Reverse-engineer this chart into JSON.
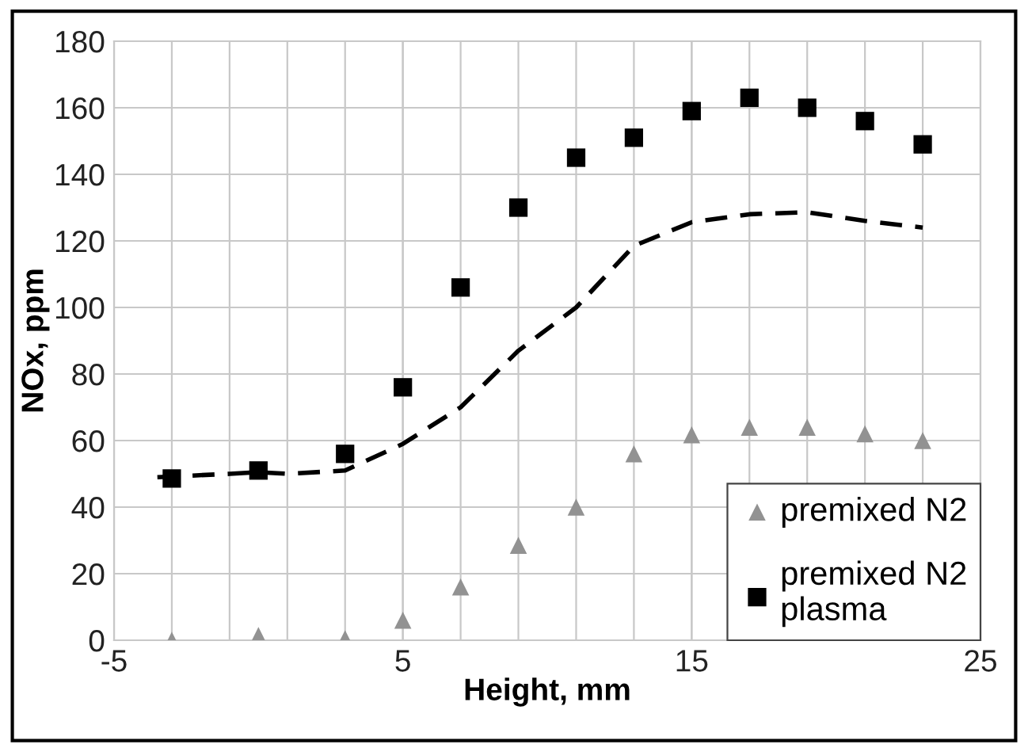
{
  "chart_data": {
    "type": "scatter",
    "xlabel": "Height, mm",
    "ylabel": "NOx, ppm",
    "x": [
      -3,
      0,
      3,
      5,
      7,
      9,
      11,
      13,
      15,
      17,
      19,
      21,
      23
    ],
    "series": [
      {
        "name": "premixed N2",
        "color": "#929292",
        "marker": "triangle",
        "values": [
          0,
          1.4,
          0.5,
          6,
          16,
          28.5,
          40,
          56,
          61.7,
          64,
          64,
          62,
          60
        ]
      },
      {
        "name": "premixed N2\nplasma",
        "color": "#000000",
        "marker": "square",
        "values": [
          48.6,
          51,
          56,
          76,
          106,
          130,
          145,
          151,
          159,
          163,
          160,
          156,
          149
        ]
      },
      {
        "type": "line",
        "color": "#000000",
        "line_style": "dashed",
        "marker": "none",
        "x": [
          -3.5,
          -1,
          0,
          1,
          3,
          5,
          7,
          9,
          11,
          13,
          15,
          17,
          19,
          21,
          23
        ],
        "values": [
          49,
          50,
          50.5,
          50,
          51,
          59,
          70,
          87,
          100,
          118.5,
          125.6,
          128,
          128.6,
          126,
          124
        ]
      }
    ],
    "xlim": [
      -5,
      25
    ],
    "xticks": [
      -5,
      5,
      15,
      25
    ],
    "ylim": [
      0,
      180
    ],
    "yticks": [
      0,
      20,
      40,
      60,
      80,
      100,
      120,
      140,
      160,
      180
    ],
    "grid": true,
    "legend": "bottom right"
  }
}
